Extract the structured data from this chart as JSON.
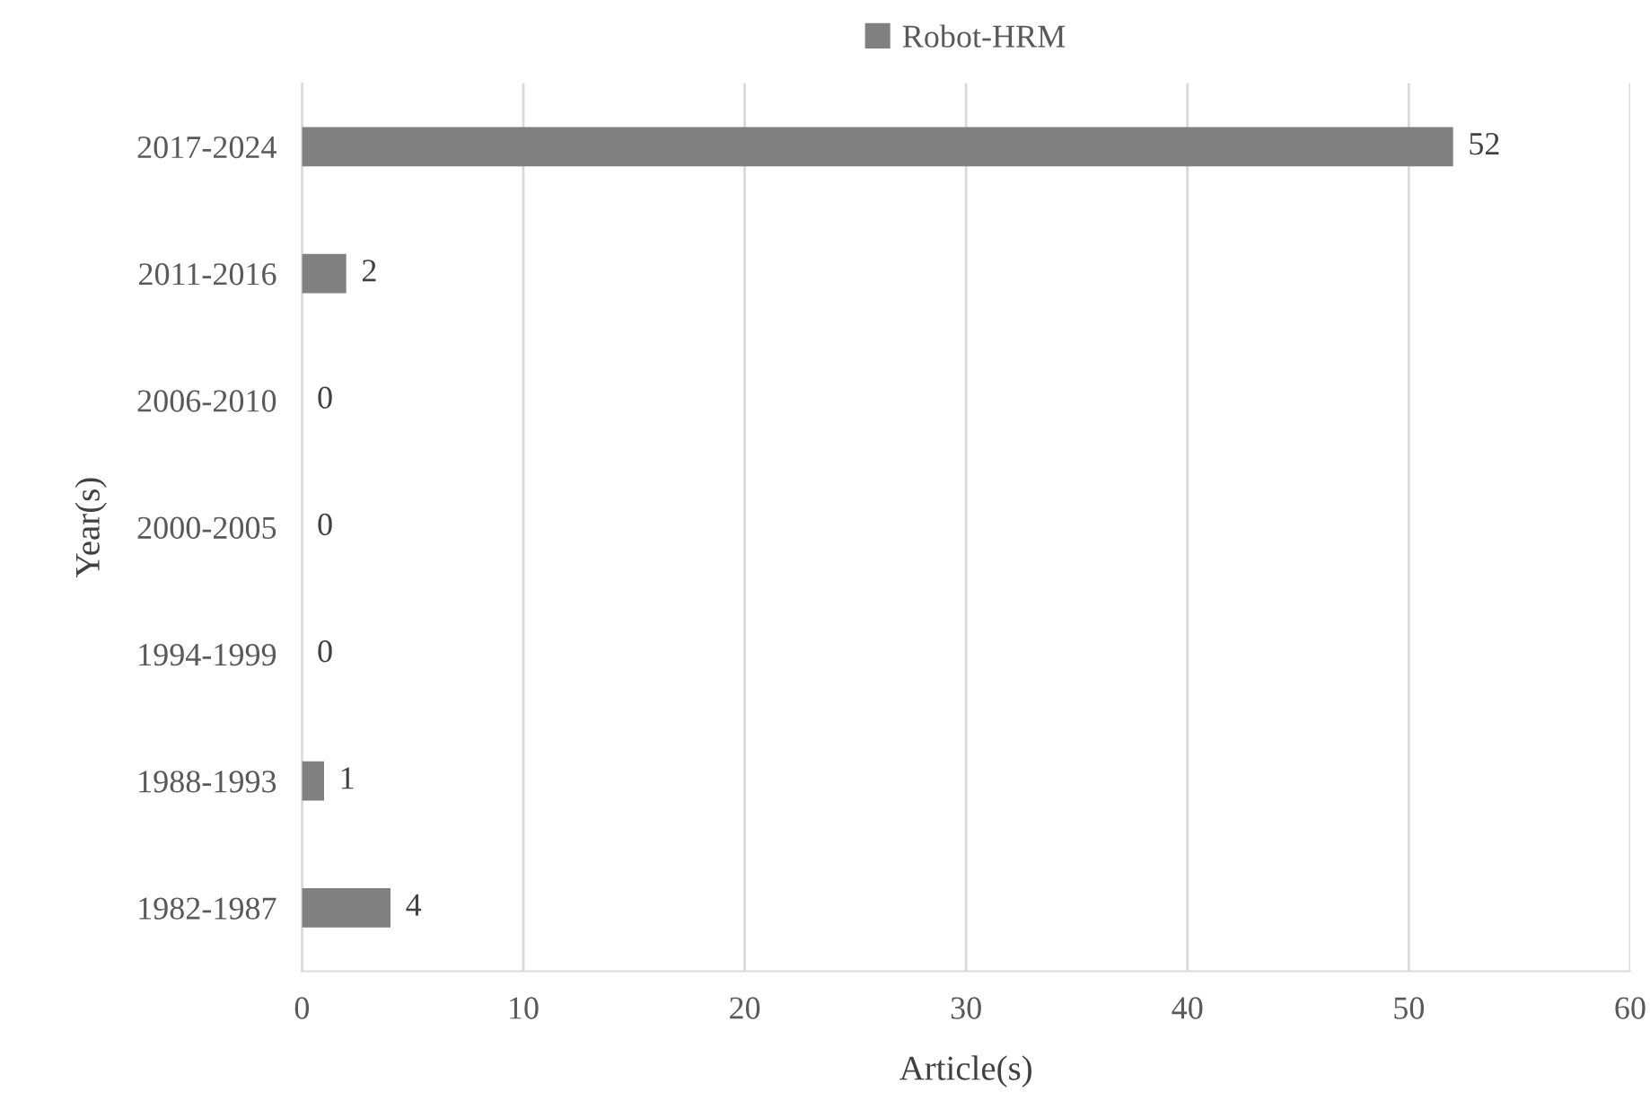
{
  "chart_data": {
    "type": "bar",
    "orientation": "horizontal",
    "xlabel": "Article(s)",
    "ylabel": "Year(s)",
    "categories": [
      "2017-2024",
      "2011-2016",
      "2006-2010",
      "2000-2005",
      "1994-1999",
      "1988-1993",
      "1982-1987"
    ],
    "series": [
      {
        "name": "Robot-HRM",
        "color": "#808080",
        "values": [
          52,
          2,
          0,
          0,
          0,
          1,
          4
        ]
      }
    ],
    "xlim": [
      0,
      60
    ],
    "xticks": [
      0,
      10,
      20,
      30,
      40,
      50,
      60
    ],
    "grid": "x",
    "legend": "top",
    "data_labels": true
  }
}
